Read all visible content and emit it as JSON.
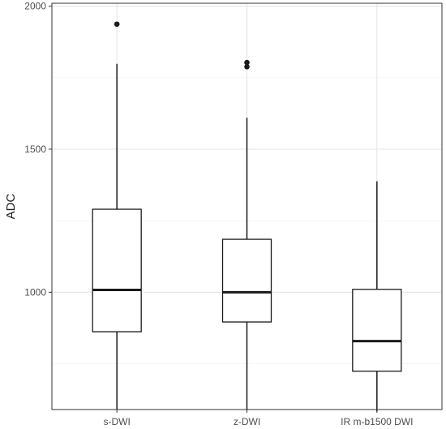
{
  "chart_data": {
    "type": "boxplot",
    "title": "",
    "xlabel": "",
    "ylabel": "ADC",
    "ylim": [
      590,
      2010
    ],
    "yticks": [
      1000,
      1500,
      2000
    ],
    "grid": true,
    "legend": "none",
    "categories": [
      "s-DWI",
      "z-DWI",
      "IR m-b1500 DWI"
    ],
    "boxes": [
      {
        "category": "s-DWI",
        "min": 590,
        "q1": 862,
        "median": 1008,
        "q3": 1290,
        "max": 1798,
        "outliers": [
          1937
        ]
      },
      {
        "category": "z-DWI",
        "min": 588,
        "q1": 896,
        "median": 1000,
        "q3": 1185,
        "max": 1610,
        "outliers": [
          1788,
          1803
        ]
      },
      {
        "category": "IR m-b1500 DWI",
        "min": 583,
        "q1": 724,
        "median": 829,
        "q3": 1010,
        "max": 1388,
        "outliers": []
      }
    ]
  },
  "colors": {
    "panel_border": "#333333",
    "grid_major": "#e6e6e6",
    "grid_minor": "#f2f2f2",
    "box_stroke": "#1a1a1a",
    "box_fill": "#ffffff",
    "outlier": "#1a1a1a",
    "tick_text": "#4d4d4d"
  }
}
